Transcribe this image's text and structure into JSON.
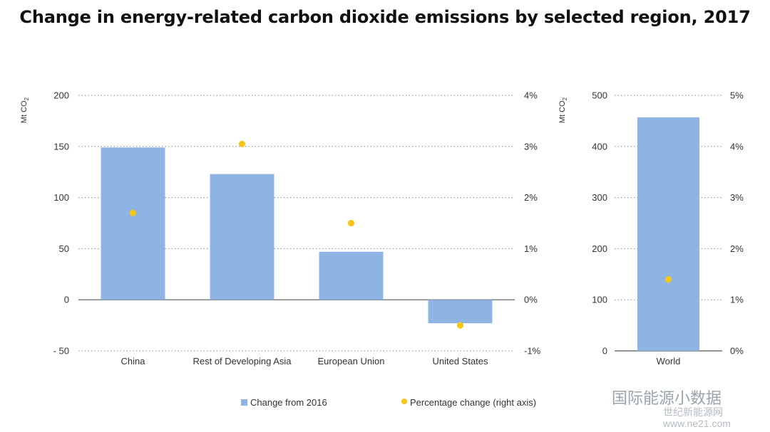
{
  "title": "Change in energy-related carbon dioxide emissions by selected region, 2017",
  "watermark": {
    "line1": "国际能源小数据",
    "line2": "世纪新能源网",
    "line3": "www.ne21.com"
  },
  "legend": [
    {
      "label": "Change from 2016",
      "color": "#8fb4e3",
      "kind": "bar"
    },
    {
      "label": "Percentage change (right axis)",
      "color": "#f5c518",
      "kind": "dot"
    }
  ],
  "chart_data": [
    {
      "type": "bar",
      "categories": [
        "China",
        "Rest of Developing Asia",
        "European Union",
        "United States"
      ],
      "series": [
        {
          "name": "Change from 2016",
          "values": [
            149,
            123,
            47,
            -23
          ],
          "color": "#8fb4e3",
          "axis": "left"
        },
        {
          "name": "Percentage change (right axis)",
          "values": [
            1.7,
            3.05,
            1.5,
            -0.5
          ],
          "color": "#f5c518",
          "axis": "right",
          "mark": "dot"
        }
      ],
      "ylabel": "Mt CO2",
      "ylim": [
        -50,
        200
      ],
      "yticks": [
        -50,
        0,
        50,
        100,
        150,
        200
      ],
      "ytick_labels": [
        "- 50",
        "0",
        "50",
        "100",
        "150",
        "200"
      ],
      "y2lim": [
        -1,
        4
      ],
      "y2ticks": [
        -1,
        0,
        1,
        2,
        3,
        4
      ],
      "y2tick_labels": [
        "-1%",
        "0%",
        "1%",
        "2%",
        "3%",
        "4%"
      ],
      "grid": true,
      "legend": "bottom"
    },
    {
      "type": "bar",
      "categories": [
        "World"
      ],
      "series": [
        {
          "name": "Change from 2016",
          "values": [
            457
          ],
          "color": "#8fb4e3",
          "axis": "left"
        },
        {
          "name": "Percentage change (right axis)",
          "values": [
            1.4
          ],
          "color": "#f5c518",
          "axis": "right",
          "mark": "dot"
        }
      ],
      "ylabel": "Mt CO2",
      "ylim": [
        0,
        500
      ],
      "yticks": [
        0,
        100,
        200,
        300,
        400,
        500
      ],
      "ytick_labels": [
        "0",
        "100",
        "200",
        "300",
        "400",
        "500"
      ],
      "y2lim": [
        0,
        5
      ],
      "y2ticks": [
        0,
        1,
        2,
        3,
        4,
        5
      ],
      "y2tick_labels": [
        "0%",
        "1%",
        "2%",
        "3%",
        "4%",
        "5%"
      ],
      "grid": true,
      "legend": "bottom"
    }
  ]
}
